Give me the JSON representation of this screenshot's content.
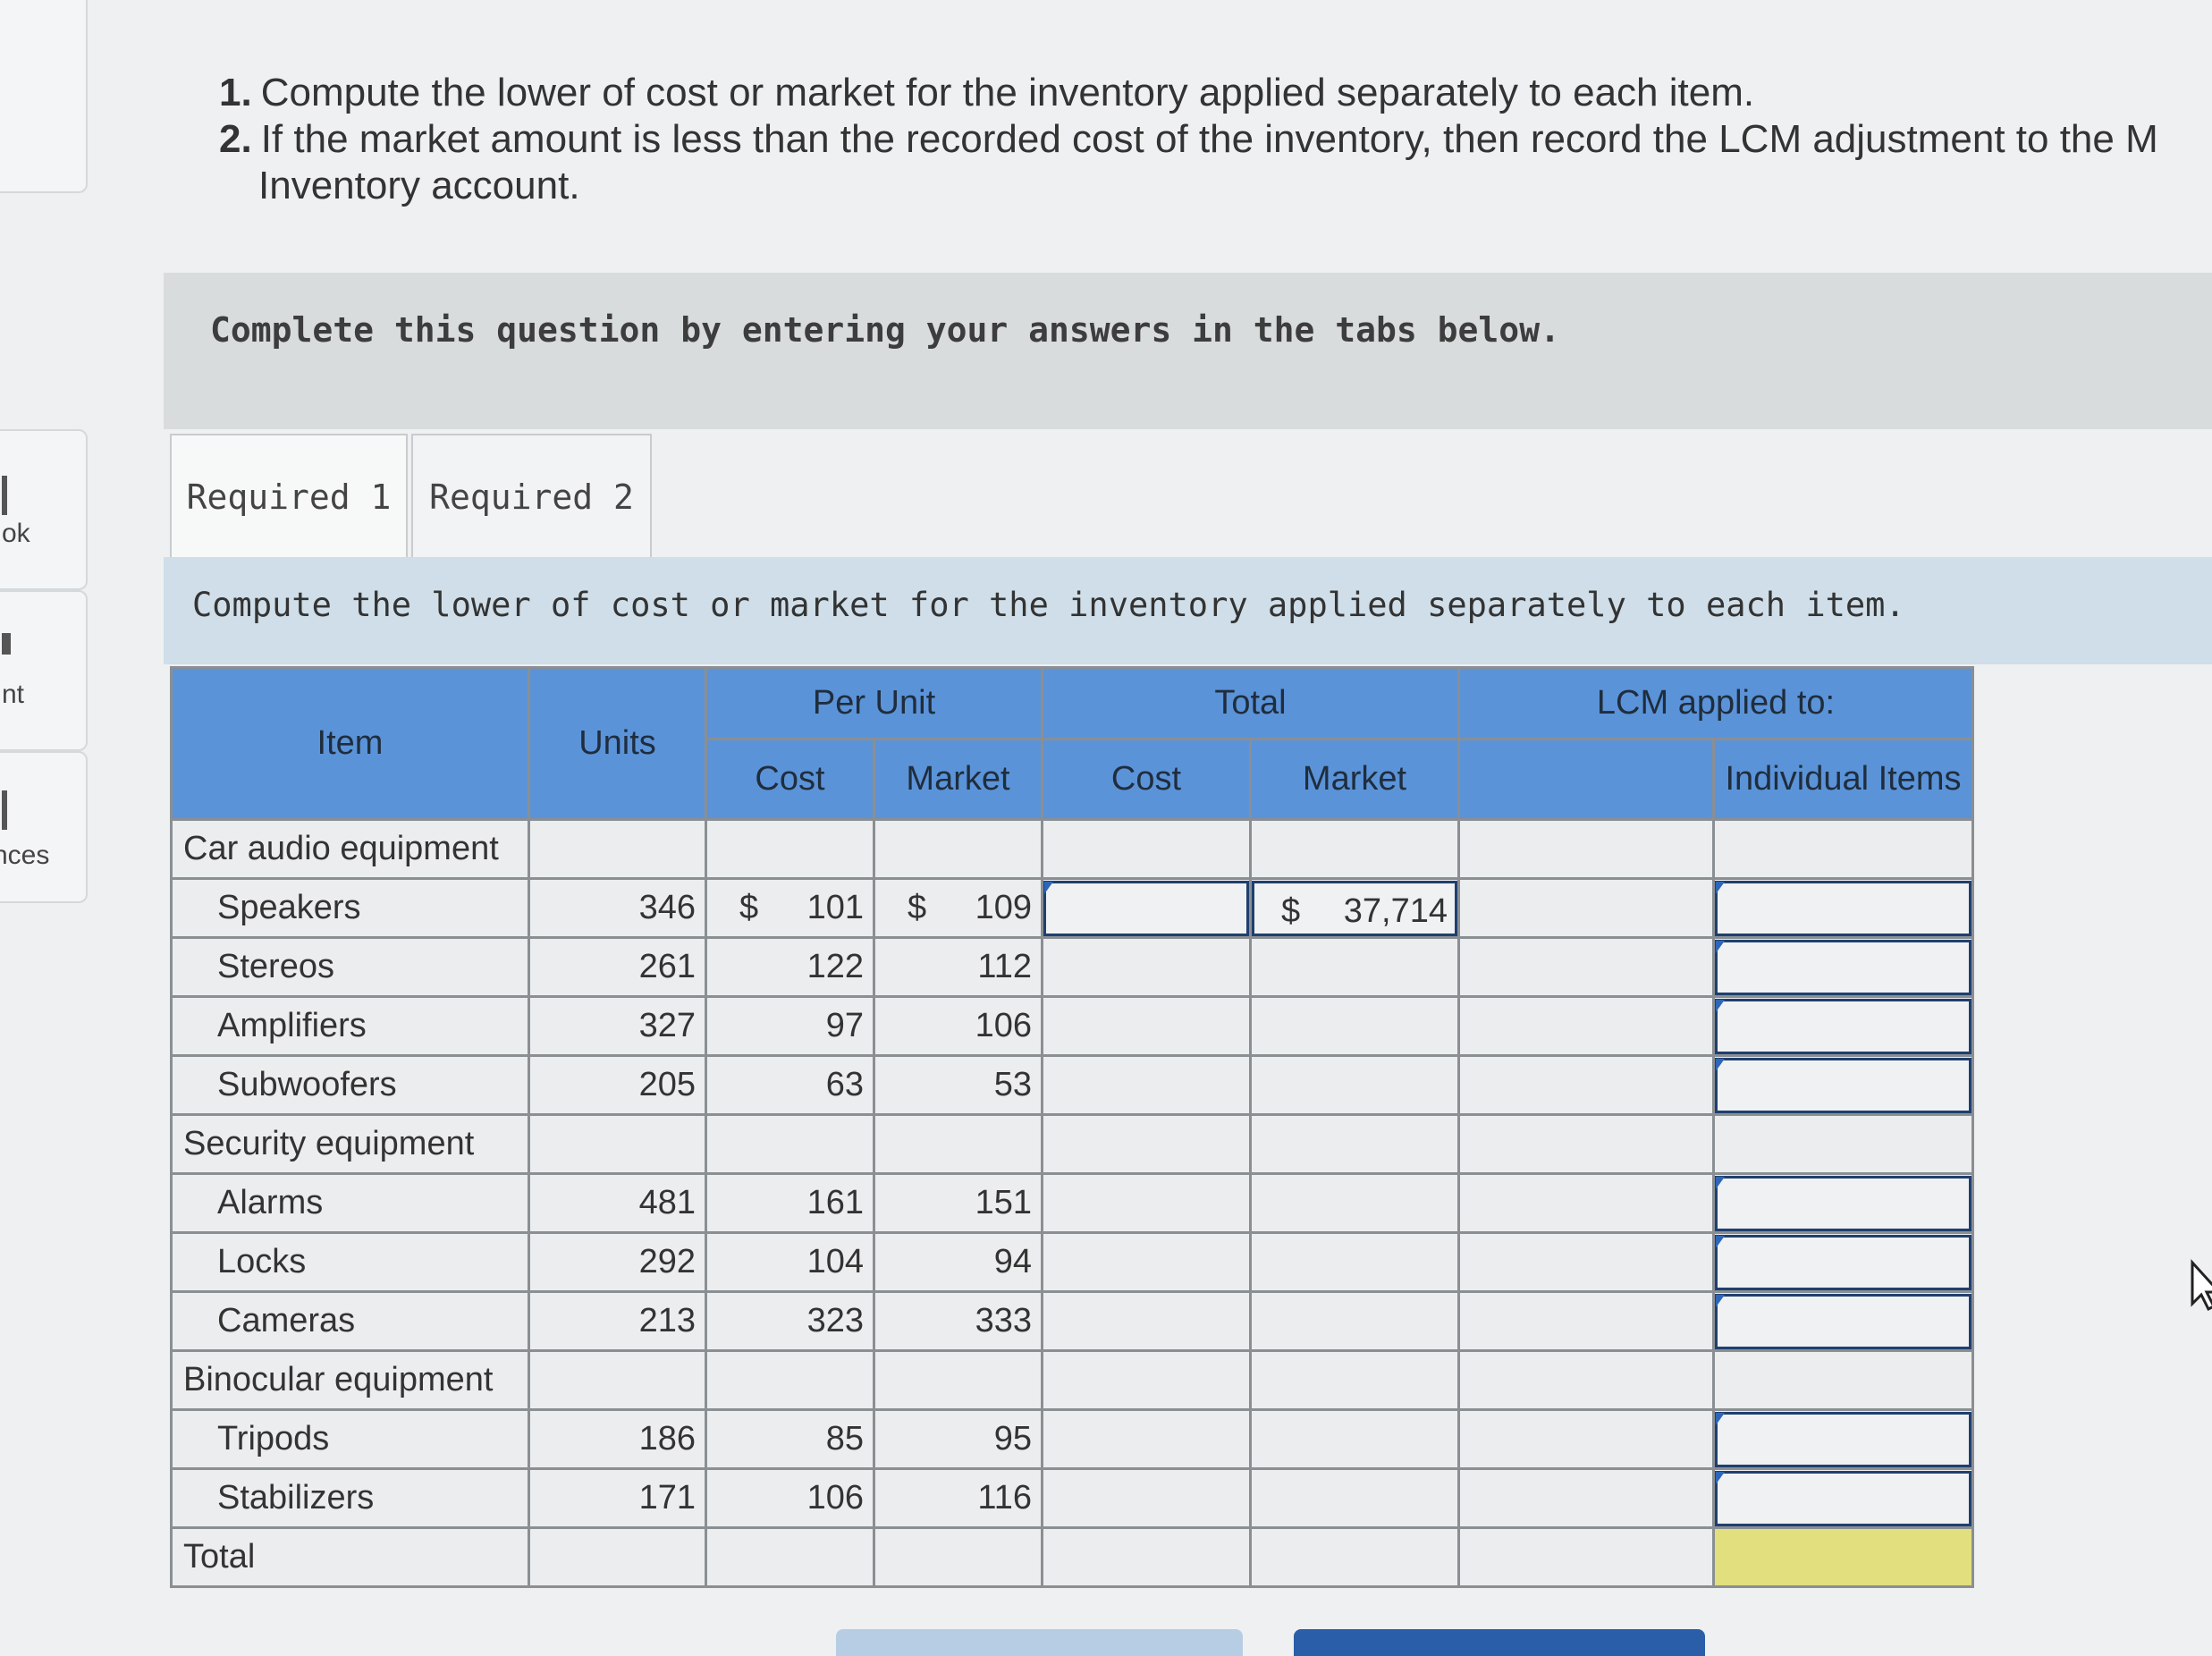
{
  "left_nav": {
    "items": [
      {
        "label": "ok"
      },
      {
        "label": "nt"
      },
      {
        "label": "nces"
      }
    ]
  },
  "instructions": {
    "items": [
      {
        "num": "1.",
        "text": "Compute the lower of cost or market for the inventory applied separately to each item."
      },
      {
        "num": "2.",
        "text": "If the market amount is less than the recorded cost of the inventory, then record the LCM adjustment to the M"
      }
    ],
    "continuation": "Inventory account."
  },
  "banner": {
    "text": "Complete this question by entering your answers in the tabs below."
  },
  "tabs": [
    {
      "label": "Required 1",
      "active": true
    },
    {
      "label": "Required 2",
      "active": false
    }
  ],
  "subheader": {
    "text": "Compute the lower of cost or market for the inventory applied separately to each item."
  },
  "table": {
    "headers": {
      "item": "Item",
      "units": "Units",
      "per_unit": "Per Unit",
      "cost": "Cost",
      "market": "Market",
      "total": "Total",
      "total_cost": "Cost",
      "total_market": "Market",
      "lcm": "LCM applied to:",
      "individual": "Individual Items"
    },
    "groups": {
      "car": "Car audio equipment",
      "security": "Security equipment",
      "binocular": "Binocular equipment"
    },
    "rows": {
      "speakers": {
        "item": "Speakers",
        "units": "346",
        "cost": "101",
        "market": "109"
      },
      "stereos": {
        "item": "Stereos",
        "units": "261",
        "cost": "122",
        "market": "112"
      },
      "amplifiers": {
        "item": "Amplifiers",
        "units": "327",
        "cost": "97",
        "market": "106"
      },
      "subwoofers": {
        "item": "Subwoofers",
        "units": "205",
        "cost": "63",
        "market": "53"
      },
      "alarms": {
        "item": "Alarms",
        "units": "481",
        "cost": "161",
        "market": "151"
      },
      "locks": {
        "item": "Locks",
        "units": "292",
        "cost": "104",
        "market": "94"
      },
      "cameras": {
        "item": "Cameras",
        "units": "213",
        "cost": "323",
        "market": "333"
      },
      "tripods": {
        "item": "Tripods",
        "units": "186",
        "cost": "85",
        "market": "95"
      },
      "stabilizers": {
        "item": "Stabilizers",
        "units": "171",
        "cost": "106",
        "market": "116"
      }
    },
    "currency": "$",
    "speakers_total_market": "37,714",
    "total_label": "Total"
  },
  "colors": {
    "header_bg": "#5b93d8",
    "total_highlight": "#e2df7e",
    "banner": "#d9dcdd",
    "subband": "#cfdee8"
  }
}
